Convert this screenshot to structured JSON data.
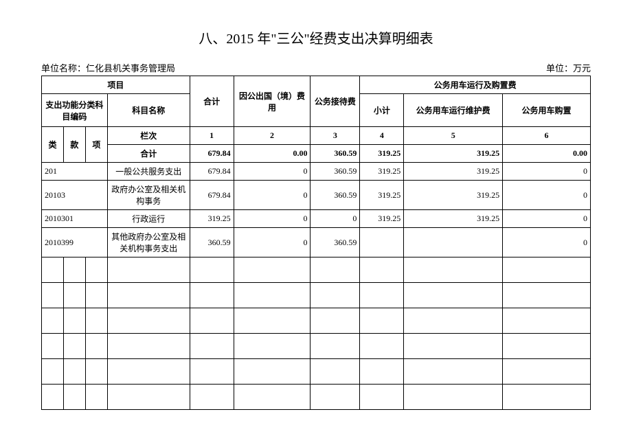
{
  "title": "八、2015 年\"三公\"经费支出决算明细表",
  "meta": {
    "org_label": "单位名称：",
    "org_name": "仁化县机关事务管理局",
    "unit_label": "单位：万元"
  },
  "headers": {
    "project": "项目",
    "code": "支出功能分类科目编码",
    "subject_name": "科目名称",
    "total": "合计",
    "abroad": "因公出国（境）费用",
    "reception": "公务接待费",
    "vehicle_group": "公务用车运行及购置费",
    "subtotal": "小计",
    "maintain": "公务用车运行维护费",
    "purchase": "公务用车购置",
    "class": "类",
    "section": "款",
    "item": "项",
    "col_order": "栏次",
    "sum_row": "合计"
  },
  "col_numbers": [
    "1",
    "2",
    "3",
    "4",
    "5",
    "6"
  ],
  "sum": {
    "total": "679.84",
    "abroad": "0.00",
    "reception": "360.59",
    "subtotal": "319.25",
    "maintain": "319.25",
    "purchase": "0.00"
  },
  "rows": [
    {
      "code": "201",
      "name": "一般公共服务支出",
      "total": "679.84",
      "abroad": "0",
      "reception": "360.59",
      "subtotal": "319.25",
      "maintain": "319.25",
      "purchase": "0"
    },
    {
      "code": "20103",
      "name": "政府办公室及相关机构事务",
      "total": "679.84",
      "abroad": "0",
      "reception": "360.59",
      "subtotal": "319.25",
      "maintain": "319.25",
      "purchase": "0"
    },
    {
      "code": "2010301",
      "name": "行政运行",
      "total": "319.25",
      "abroad": "0",
      "reception": "0",
      "subtotal": "319.25",
      "maintain": "319.25",
      "purchase": "0"
    },
    {
      "code": "2010399",
      "name": "其他政府办公室及相关机构事务支出",
      "total": "360.59",
      "abroad": "0",
      "reception": "360.59",
      "subtotal": "",
      "maintain": "",
      "purchase": "0"
    }
  ],
  "empty_row_count": 6,
  "colwidths": {
    "class": "4%",
    "section": "4%",
    "item": "4%",
    "name": "15%",
    "total": "8%",
    "abroad": "14%",
    "reception": "9%",
    "subtotal": "8%",
    "maintain": "18%",
    "purchase": "16%"
  }
}
